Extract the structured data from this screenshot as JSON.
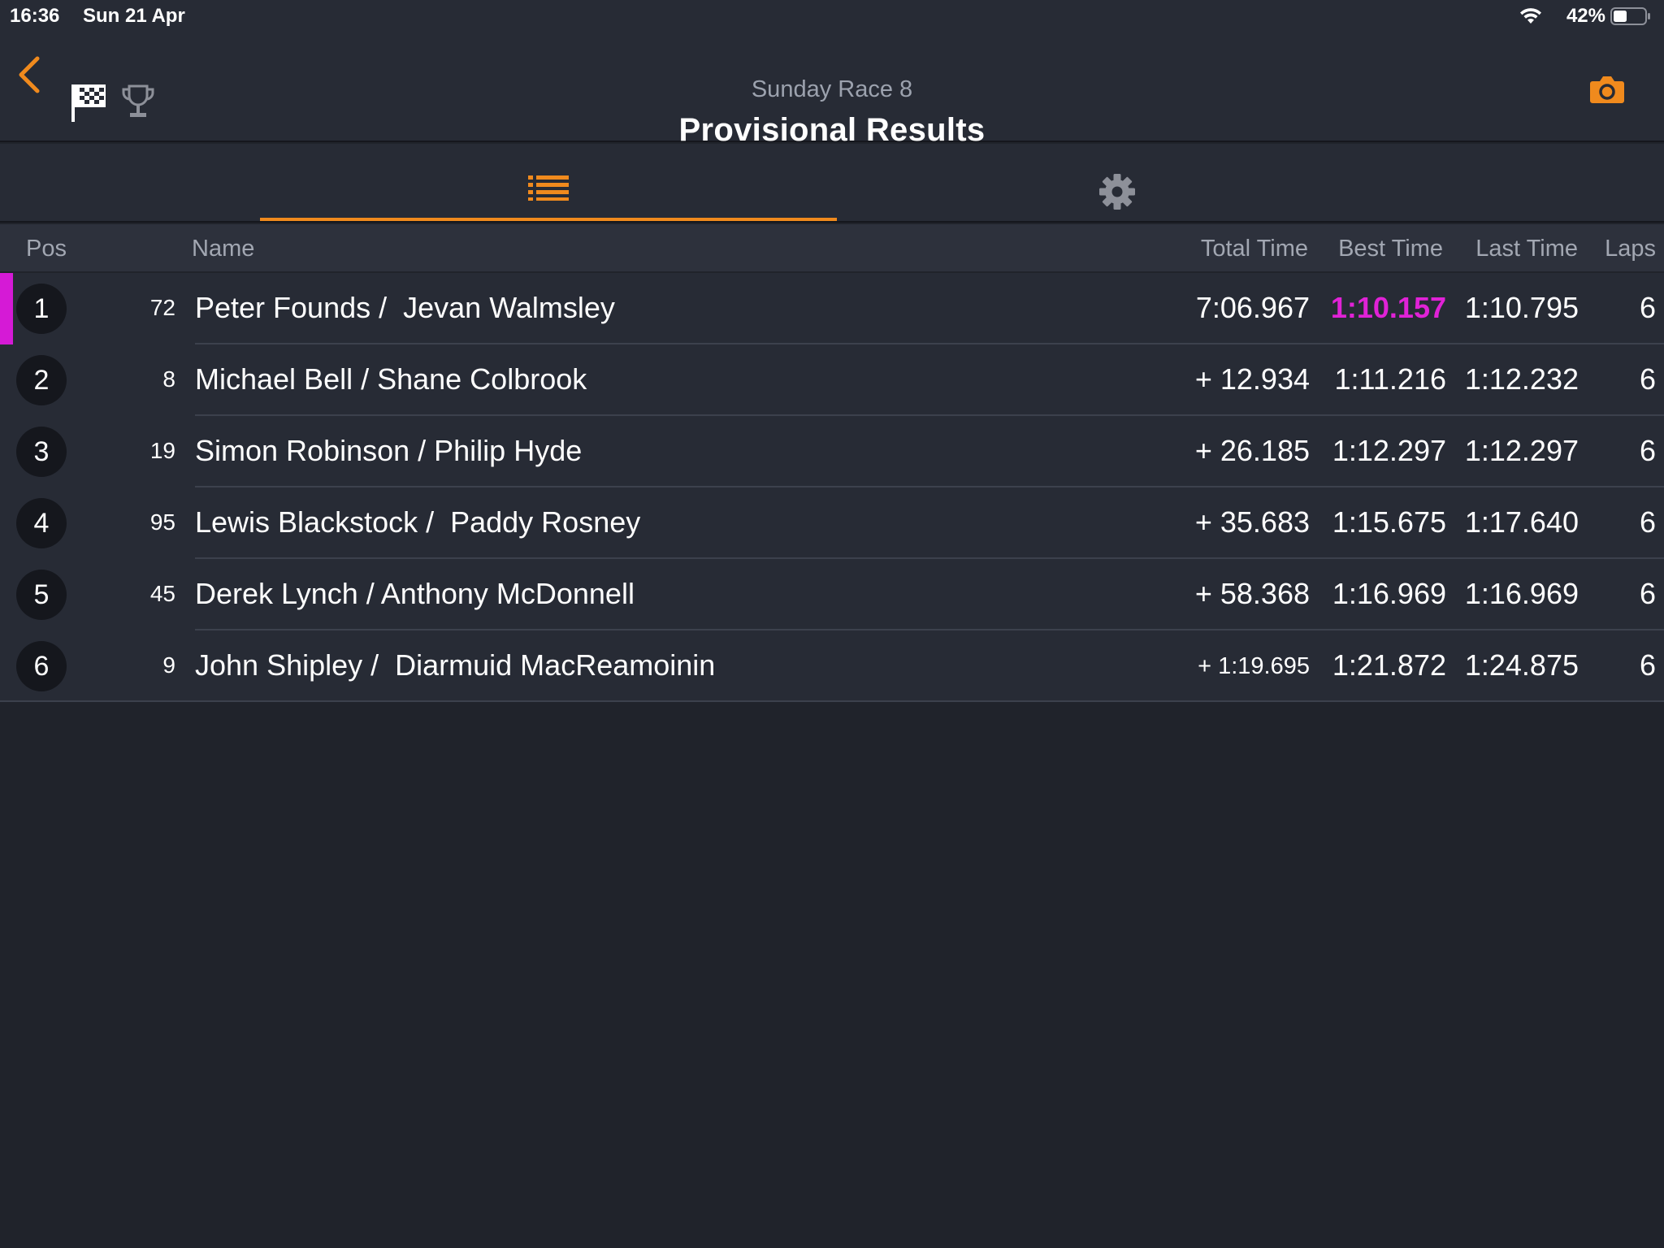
{
  "status_bar": {
    "time": "16:36",
    "date": "Sun 21 Apr",
    "battery_percent": "42%",
    "battery_level": 0.42
  },
  "header": {
    "subtitle": "Sunday Race 8",
    "title": "Provisional Results",
    "icons": [
      "chevron-left-icon",
      "checkered-flag-icon",
      "trophy-icon",
      "camera-icon"
    ]
  },
  "tabs": [
    {
      "icon": "list-icon",
      "active": true
    },
    {
      "icon": "gear-icon",
      "active": false
    }
  ],
  "columns": {
    "pos": "Pos",
    "name": "Name",
    "total": "Total Time",
    "best": "Best Time",
    "last": "Last Time",
    "laps": "Laps"
  },
  "colors": {
    "accent": "#f08a1d",
    "fastest": "#e022d6",
    "background": "#20232b",
    "panel": "#272b35"
  },
  "rows": [
    {
      "pos": "1",
      "number": "72",
      "name": "Peter Founds /  Jevan Walmsley",
      "total": "7:06.967",
      "best": "1:10.157",
      "last": "1:10.795",
      "laps": "6"
    },
    {
      "pos": "2",
      "number": "8",
      "name": "Michael Bell / Shane Colbrook",
      "total": "+ 12.934",
      "best": "1:11.216",
      "last": "1:12.232",
      "laps": "6"
    },
    {
      "pos": "3",
      "number": "19",
      "name": "Simon Robinson / Philip Hyde",
      "total": "+ 26.185",
      "best": "1:12.297",
      "last": "1:12.297",
      "laps": "6"
    },
    {
      "pos": "4",
      "number": "95",
      "name": "Lewis Blackstock /  Paddy Rosney",
      "total": "+ 35.683",
      "best": "1:15.675",
      "last": "1:17.640",
      "laps": "6"
    },
    {
      "pos": "5",
      "number": "45",
      "name": "Derek Lynch / Anthony McDonnell",
      "total": "+ 58.368",
      "best": "1:16.969",
      "last": "1:16.969",
      "laps": "6"
    },
    {
      "pos": "6",
      "number": "9",
      "name": "John Shipley /  Diarmuid MacReamoinin",
      "total": "+ 1:19.695",
      "best": "1:21.872",
      "last": "1:24.875",
      "laps": "6"
    }
  ]
}
